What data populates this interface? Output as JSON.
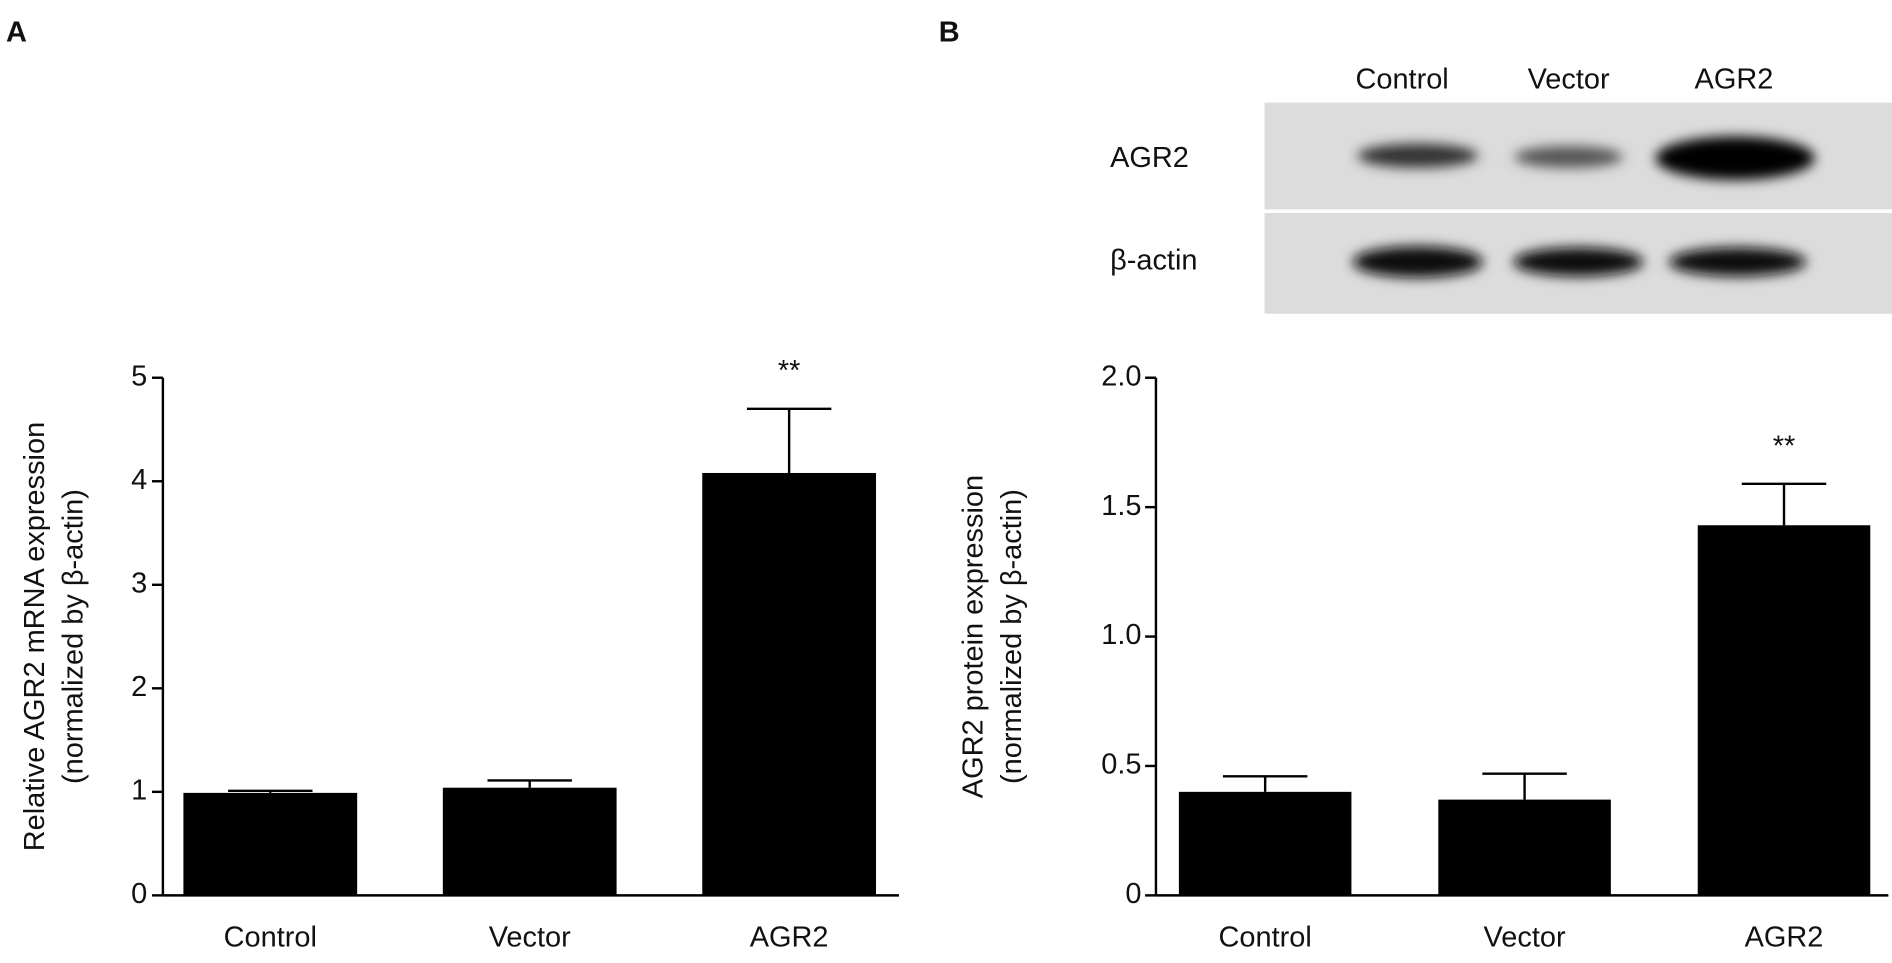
{
  "chart_data": [
    {
      "type": "bar",
      "panel": "A",
      "categories": [
        "Control",
        "Vector",
        "AGR2"
      ],
      "values": [
        0.99,
        1.04,
        4.08
      ],
      "errors": [
        0.02,
        0.07,
        0.62
      ],
      "color": "#000000",
      "ylim": [
        0,
        5
      ],
      "yticks": [
        0,
        1,
        2,
        3,
        4,
        5
      ],
      "ylabel": [
        "Relative AGR2 mRNA expression",
        "(normalized by β-actin)"
      ],
      "annotations": [
        {
          "category": "AGR2",
          "text": "**"
        }
      ]
    },
    {
      "type": "bar",
      "panel": "B",
      "categories": [
        "Control",
        "Vector",
        "AGR2"
      ],
      "values": [
        0.4,
        0.37,
        1.43
      ],
      "errors": [
        0.06,
        0.1,
        0.16
      ],
      "color": "#000000",
      "ylim": [
        0,
        2
      ],
      "yticks": [
        0,
        0.5,
        {
          "value": 1,
          "label": "1.0"
        },
        1.5,
        {
          "value": 2,
          "label": "2.0"
        }
      ],
      "ylabel": [
        "AGR2 protein expression",
        "(normalized by β-actin)"
      ],
      "annotations": [
        {
          "category": "AGR2",
          "text": "**"
        }
      ]
    }
  ],
  "blot": {
    "lanes": [
      "Control",
      "Vector",
      "AGR2"
    ],
    "rows": [
      "AGR2",
      "β-actin"
    ]
  }
}
